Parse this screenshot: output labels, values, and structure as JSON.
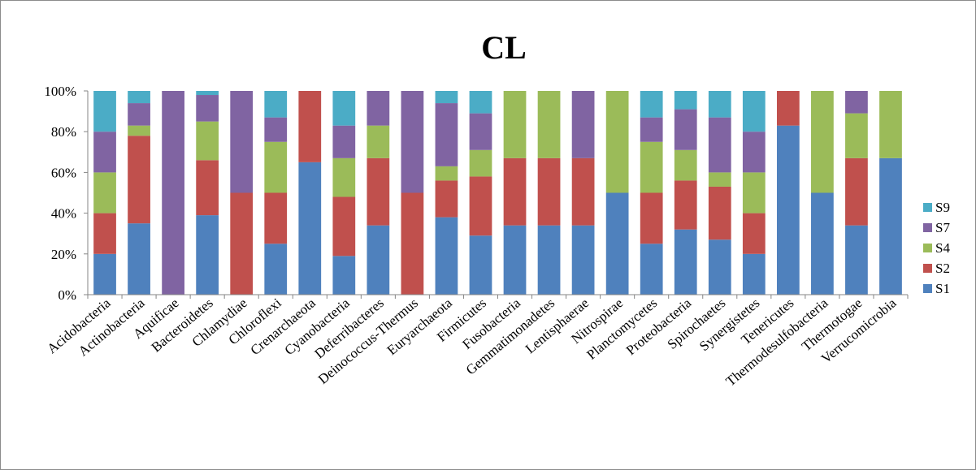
{
  "chart_data": {
    "type": "bar",
    "stacked": "percent",
    "title": "CL",
    "xlabel": "",
    "ylabel": "",
    "ylim": [
      0,
      100
    ],
    "yticks": [
      "0%",
      "20%",
      "40%",
      "60%",
      "80%",
      "100%"
    ],
    "grid": false,
    "legend_position": "right",
    "categories": [
      "Acidobacteria",
      "Actinobacteria",
      "Aquificae",
      "Bacteroidetes",
      "Chlamydiae",
      "Chloroflexi",
      "Crenarchaeota",
      "Cyanobacteria",
      "Deferribacteres",
      "Deinococcus-Thermus",
      "Euryarchaeota",
      "Firmicutes",
      "Fusobacteria",
      "Gemmatimonadetes",
      "Lentisphaerae",
      "Nitrospirae",
      "Planctomycetes",
      "Proteobacteria",
      "Spirochaetes",
      "Synergistetes",
      "Tenericutes",
      "Thermodesulfobacteria",
      "Thermotogae",
      "Verrucomicrobia"
    ],
    "series": [
      {
        "name": "S1",
        "color": "#4f81bd",
        "values": [
          20,
          35,
          0,
          39,
          0,
          25,
          65,
          19,
          34,
          0,
          38,
          29,
          34,
          34,
          34,
          50,
          25,
          32,
          27,
          20,
          83,
          50,
          34,
          67
        ]
      },
      {
        "name": "S2",
        "color": "#c0504d",
        "values": [
          20,
          43,
          0,
          27,
          50,
          25,
          35,
          29,
          33,
          50,
          18,
          29,
          33,
          33,
          33,
          0,
          25,
          24,
          26,
          20,
          17,
          0,
          33,
          0
        ]
      },
      {
        "name": "S4",
        "color": "#9bbb59",
        "values": [
          20,
          5,
          0,
          19,
          0,
          25,
          0,
          19,
          16,
          0,
          7,
          13,
          33,
          33,
          0,
          50,
          25,
          15,
          7,
          20,
          0,
          50,
          22,
          33
        ]
      },
      {
        "name": "S7",
        "color": "#8064a2",
        "values": [
          20,
          11,
          100,
          13,
          50,
          12,
          0,
          16,
          17,
          50,
          31,
          18,
          0,
          0,
          33,
          0,
          12,
          20,
          27,
          20,
          0,
          0,
          11,
          0
        ]
      },
      {
        "name": "S9",
        "color": "#4bacc6",
        "values": [
          20,
          6,
          0,
          2,
          0,
          13,
          0,
          17,
          0,
          0,
          6,
          11,
          0,
          0,
          0,
          0,
          13,
          9,
          13,
          20,
          0,
          0,
          0,
          0
        ]
      }
    ],
    "legend_order": [
      "S9",
      "S7",
      "S4",
      "S2",
      "S1"
    ]
  }
}
